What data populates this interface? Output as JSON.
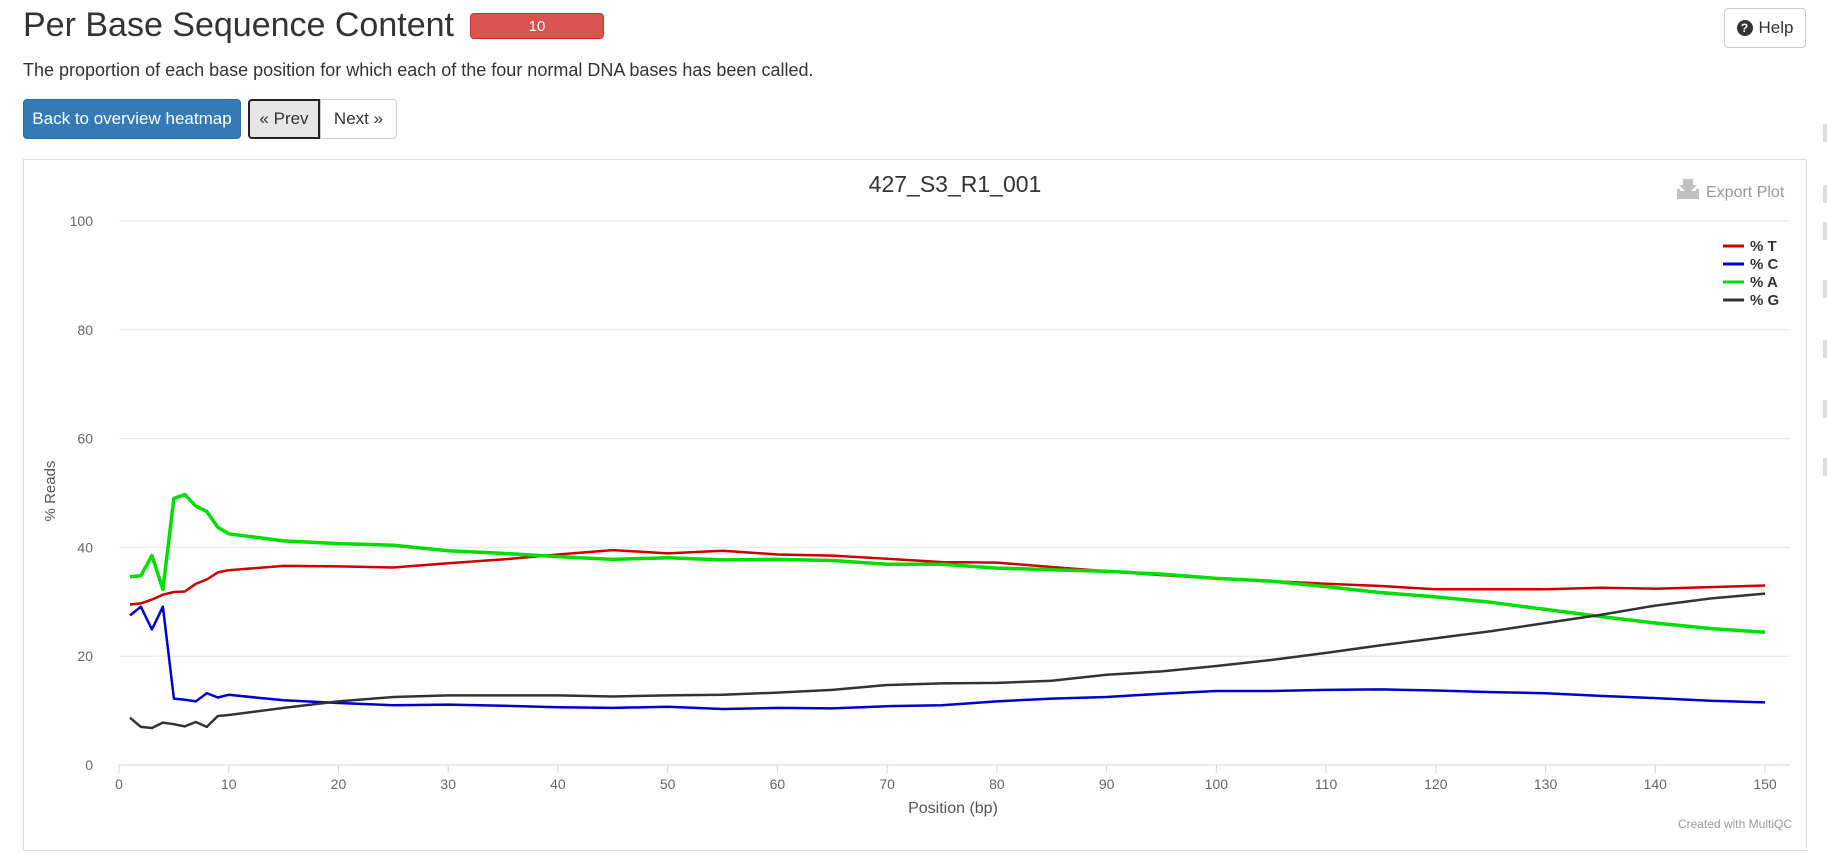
{
  "header": {
    "title": "Per Base Sequence Content",
    "badge": "10",
    "help_label": "Help",
    "description": "The proportion of each base position for which each of the four normal DNA bases has been called."
  },
  "nav": {
    "back_label": "Back to overview heatmap",
    "prev_label": "« Prev",
    "next_label": "Next »"
  },
  "plot": {
    "export_label": "Export Plot",
    "credit": "Created with MultiQC"
  },
  "colors": {
    "badge": "#d9534f",
    "primary": "#337ab7",
    "T": "#cc0000",
    "C": "#0000cc",
    "A": "#00dd00",
    "G": "#333333"
  },
  "chart_data": {
    "type": "line",
    "title": "427_S3_R1_001",
    "xlabel": "Position (bp)",
    "ylabel": "% Reads",
    "xlim": [
      0,
      151
    ],
    "ylim": [
      0,
      100
    ],
    "xticks": [
      0,
      10,
      20,
      30,
      40,
      50,
      60,
      70,
      80,
      90,
      100,
      110,
      120,
      130,
      140,
      150
    ],
    "yticks": [
      0,
      20,
      40,
      60,
      80,
      100
    ],
    "grid": true,
    "legend_position": "top-right",
    "x": [
      1,
      2,
      3,
      4,
      5,
      6,
      7,
      8,
      9,
      10,
      15,
      20,
      25,
      30,
      35,
      40,
      45,
      50,
      55,
      60,
      65,
      70,
      75,
      80,
      85,
      90,
      95,
      100,
      105,
      110,
      115,
      120,
      125,
      130,
      135,
      140,
      145,
      150
    ],
    "series": [
      {
        "name": "% T",
        "color": "#cc0000",
        "values": [
          29.5,
          29.7,
          30.4,
          31.3,
          31.8,
          31.9,
          33.3,
          34.1,
          35.4,
          35.8,
          36.6,
          36.5,
          36.3,
          37.1,
          37.8,
          38.7,
          39.5,
          38.9,
          39.4,
          38.7,
          38.5,
          37.9,
          37.3,
          37.2,
          36.4,
          35.6,
          34.9,
          34.3,
          33.8,
          33.3,
          32.9,
          32.3,
          32.3,
          32.3,
          32.6,
          32.4,
          32.7,
          33.0
        ]
      },
      {
        "name": "% C",
        "color": "#0000cc",
        "values": [
          27.5,
          29.1,
          24.9,
          29.1,
          12.2,
          12.0,
          11.7,
          13.2,
          12.4,
          12.9,
          11.9,
          11.4,
          11.0,
          11.1,
          10.9,
          10.6,
          10.5,
          10.7,
          10.3,
          10.5,
          10.4,
          10.8,
          11.0,
          11.7,
          12.2,
          12.5,
          13.1,
          13.6,
          13.6,
          13.8,
          13.9,
          13.7,
          13.4,
          13.2,
          12.7,
          12.3,
          11.8,
          11.5
        ]
      },
      {
        "name": "% A",
        "color": "#00dd00",
        "values": [
          34.6,
          34.8,
          38.5,
          32.3,
          49.0,
          49.7,
          47.6,
          46.6,
          43.7,
          42.5,
          41.2,
          40.7,
          40.4,
          39.4,
          38.9,
          38.3,
          37.8,
          38.1,
          37.7,
          37.8,
          37.6,
          36.9,
          36.9,
          36.2,
          35.9,
          35.6,
          35.1,
          34.3,
          33.8,
          32.8,
          31.7,
          30.9,
          29.9,
          28.6,
          27.3,
          26.1,
          25.1,
          24.4
        ]
      },
      {
        "name": "% G",
        "color": "#333333",
        "values": [
          8.7,
          7.0,
          6.8,
          7.8,
          7.5,
          7.1,
          7.9,
          7.0,
          9.0,
          9.2,
          10.5,
          11.7,
          12.5,
          12.8,
          12.8,
          12.8,
          12.6,
          12.8,
          12.9,
          13.3,
          13.8,
          14.7,
          15.0,
          15.1,
          15.5,
          16.6,
          17.2,
          18.2,
          19.3,
          20.6,
          22.0,
          23.3,
          24.6,
          26.1,
          27.6,
          29.3,
          30.6,
          31.5
        ]
      }
    ]
  }
}
